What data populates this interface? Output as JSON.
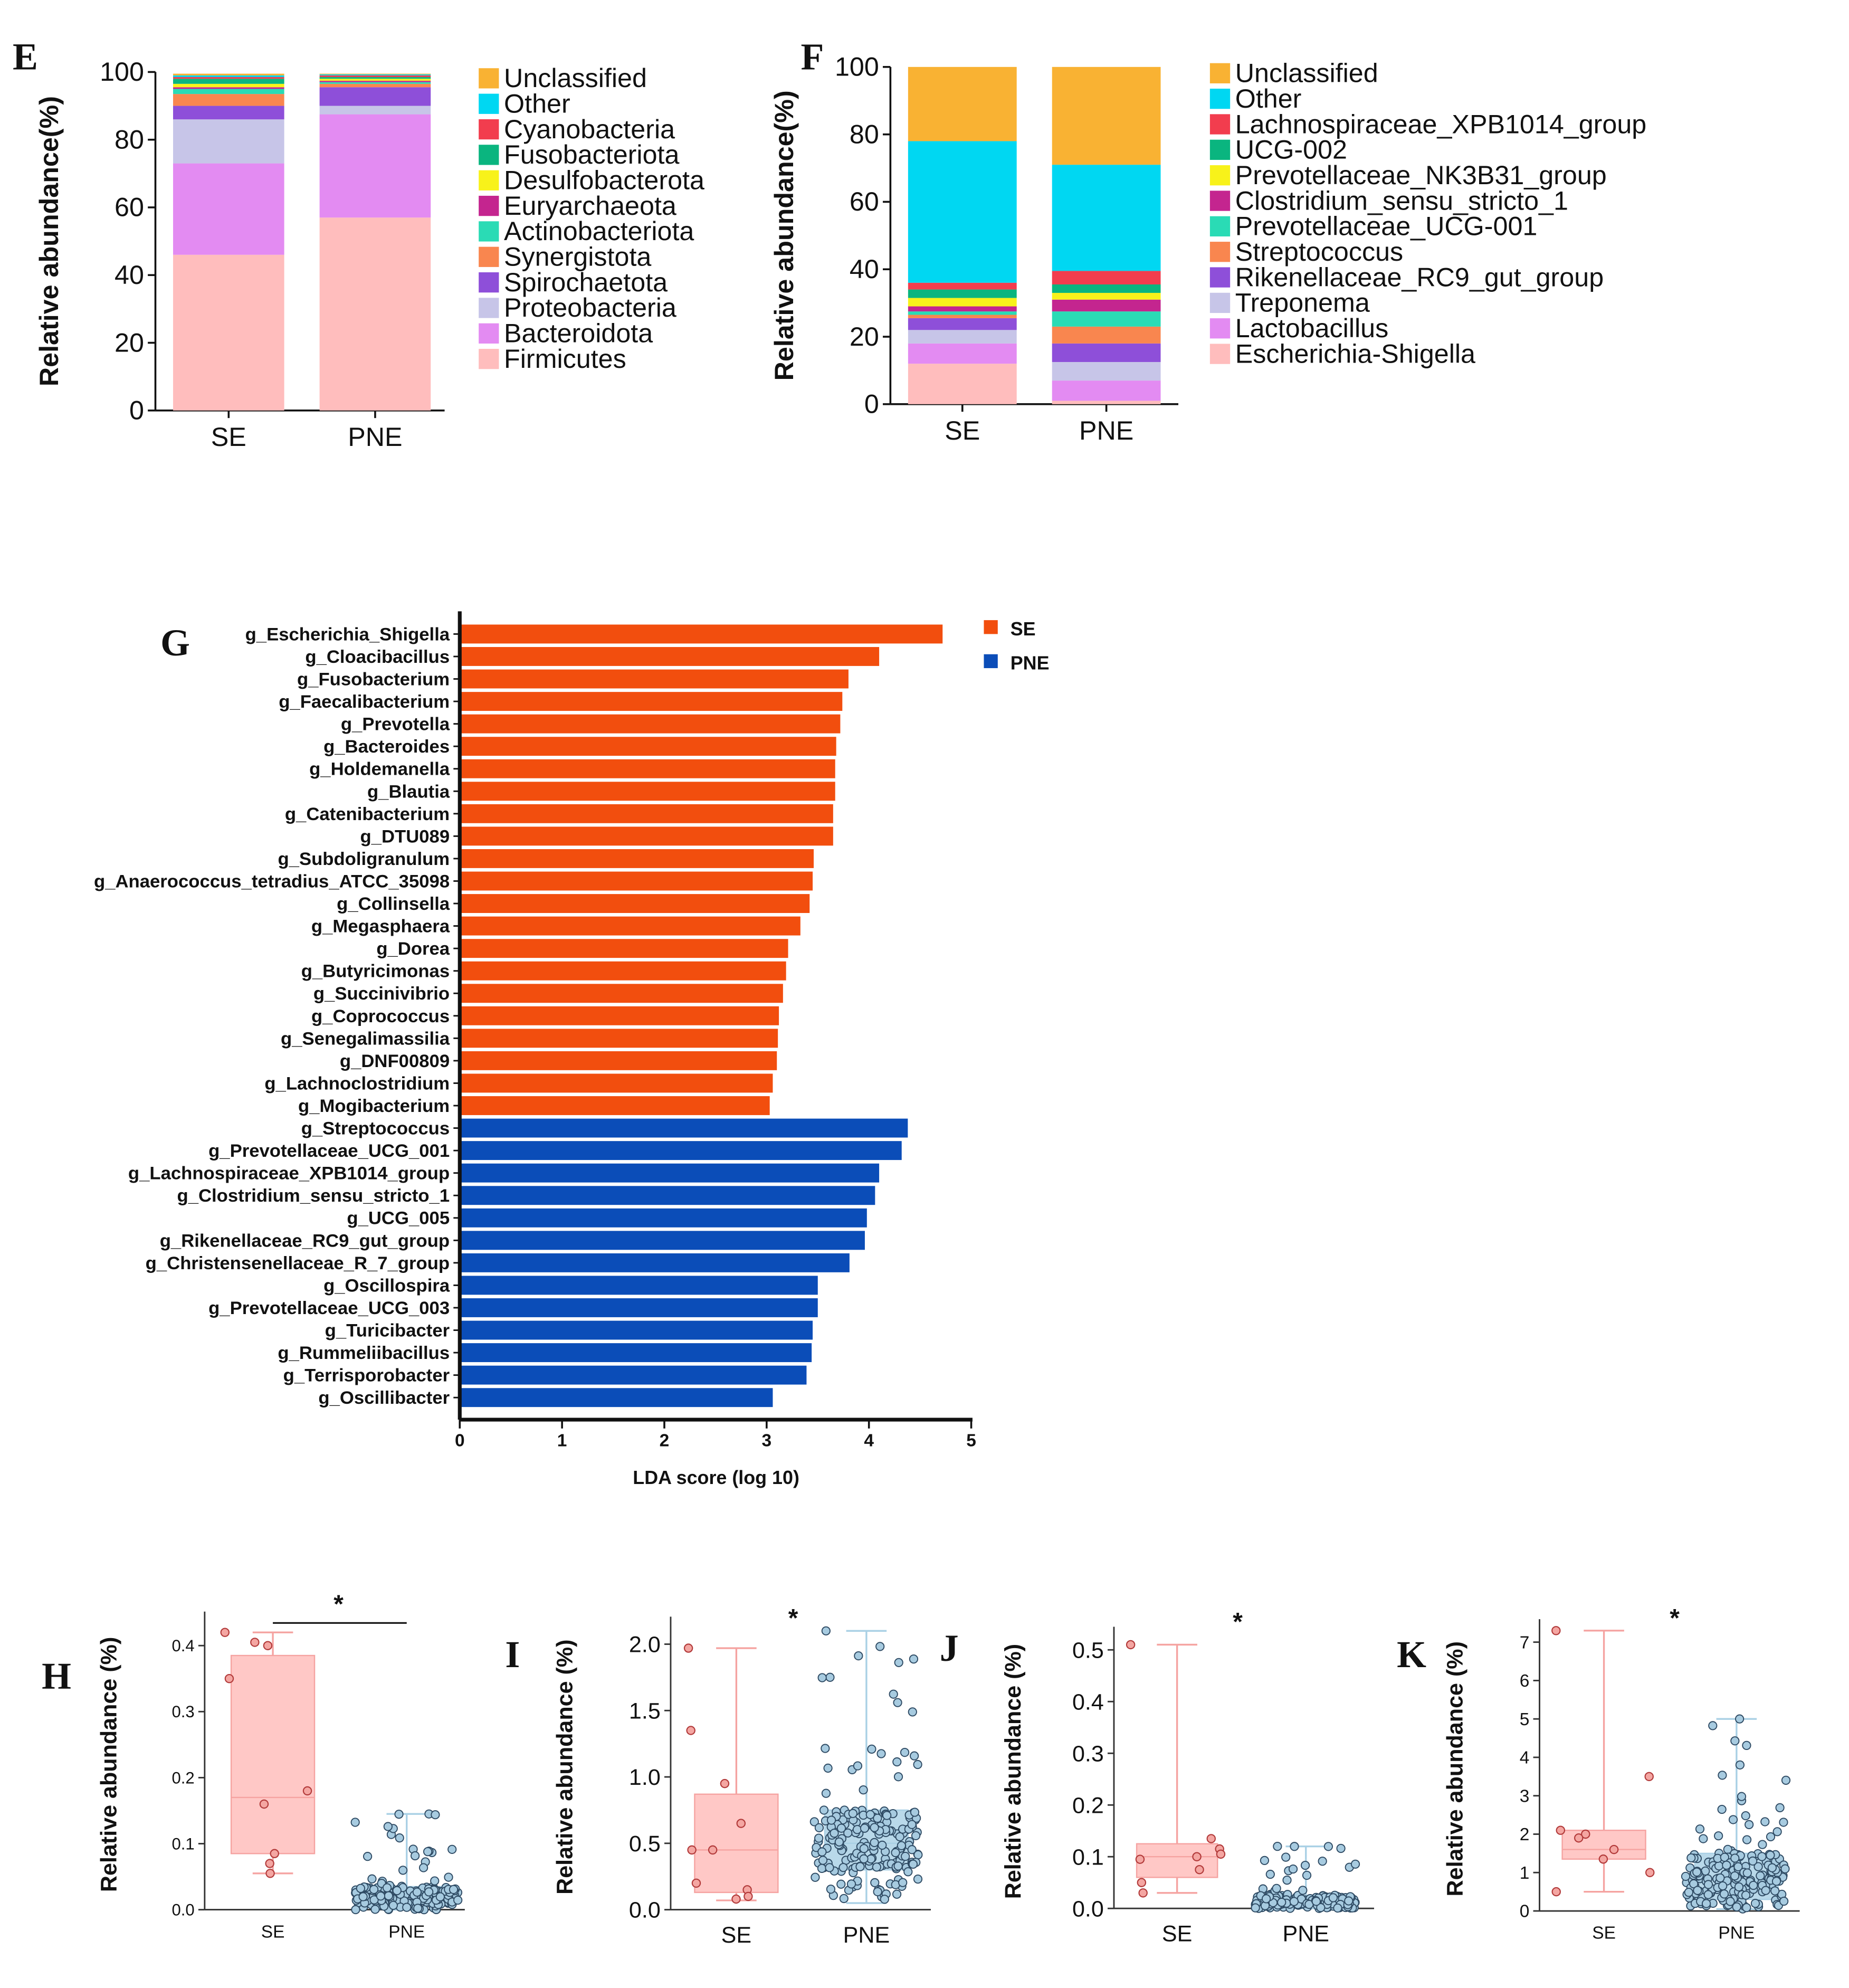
{
  "chart_data": [
    {
      "panel": "E",
      "type": "bar",
      "stacked": true,
      "ylabel": "Relative abundance(%)",
      "ylim": [
        0,
        100
      ],
      "yticks": [
        0,
        20,
        40,
        60,
        80,
        100
      ],
      "categories": [
        "SE",
        "PNE"
      ],
      "legend": [
        "Unclassified",
        "Other",
        "Cyanobacteria",
        "Fusobacteriota",
        "Desulfobacterota",
        "Euryarchaeota",
        "Actinobacteriota",
        "Synergistota",
        "Spirochaetota",
        "Proteobacteria",
        "Bacteroidota",
        "Firmicutes"
      ],
      "series": [
        {
          "name": "Firmicutes",
          "color": "#FFBDBD",
          "values": [
            46,
            57
          ]
        },
        {
          "name": "Bacteroidota",
          "color": "#E38BF2",
          "values": [
            27,
            30.5
          ]
        },
        {
          "name": "Proteobacteria",
          "color": "#C7C5E8",
          "values": [
            13,
            2.5
          ]
        },
        {
          "name": "Spirochaetota",
          "color": "#8E4FD9",
          "values": [
            4,
            5.5
          ]
        },
        {
          "name": "Synergistota",
          "color": "#F9864F",
          "values": [
            3.5,
            1
          ]
        },
        {
          "name": "Actinobacteriota",
          "color": "#2ADBB5",
          "values": [
            1.5,
            0.5
          ]
        },
        {
          "name": "Euryarchaeota",
          "color": "#C4258F",
          "values": [
            0.5,
            0.4
          ]
        },
        {
          "name": "Desulfobacterota",
          "color": "#F8F21A",
          "values": [
            1,
            0.6
          ]
        },
        {
          "name": "Fusobacteriota",
          "color": "#0AB57F",
          "values": [
            1.5,
            0.5
          ]
        },
        {
          "name": "Cyanobacteria",
          "color": "#F23D4E",
          "values": [
            0.5,
            0.5
          ]
        },
        {
          "name": "Other",
          "color": "#00D7F2",
          "values": [
            0.5,
            0.3
          ]
        },
        {
          "name": "Unclassified",
          "color": "#F9B233",
          "values": [
            0.5,
            0.2
          ]
        }
      ]
    },
    {
      "panel": "F",
      "type": "bar",
      "stacked": true,
      "ylabel": "Relative abundance(%)",
      "ylim": [
        0,
        100
      ],
      "yticks": [
        0,
        20,
        40,
        60,
        80,
        100
      ],
      "categories": [
        "SE",
        "PNE"
      ],
      "legend": [
        "Unclassified",
        "Other",
        "Lachnospiraceae_XPB1014_group",
        "UCG-002",
        "Prevotellaceae_NK3B31_group",
        "Clostridium_sensu_stricto_1",
        "Prevotellaceae_UCG-001",
        "Streptococcus",
        "Rikenellaceae_RC9_gut_group",
        "Treponema",
        "Lactobacillus",
        "Escherichia-Shigella"
      ],
      "series": [
        {
          "name": "Escherichia-Shigella",
          "color": "#FFBDBD",
          "values": [
            12,
            1
          ]
        },
        {
          "name": "Lactobacillus",
          "color": "#E38BF2",
          "values": [
            6,
            6
          ]
        },
        {
          "name": "Treponema",
          "color": "#C7C5E8",
          "values": [
            4,
            5.5
          ]
        },
        {
          "name": "Rikenellaceae_RC9_gut_group",
          "color": "#8E4FD9",
          "values": [
            3.5,
            5.5
          ]
        },
        {
          "name": "Streptococcus",
          "color": "#F9864F",
          "values": [
            1,
            5
          ]
        },
        {
          "name": "Prevotellaceae_UCG-001",
          "color": "#2ADBB5",
          "values": [
            1,
            4.5
          ]
        },
        {
          "name": "Clostridium_sensu_stricto_1",
          "color": "#C4258F",
          "values": [
            1.5,
            3.5
          ]
        },
        {
          "name": "Prevotellaceae_NK3B31_group",
          "color": "#F8F21A",
          "values": [
            2.5,
            2
          ]
        },
        {
          "name": "UCG-002",
          "color": "#0AB57F",
          "values": [
            2.5,
            2.5
          ]
        },
        {
          "name": "Lachnospiraceae_XPB1014_group",
          "color": "#F23D4E",
          "values": [
            2,
            4
          ]
        },
        {
          "name": "Other",
          "color": "#00D7F2",
          "values": [
            42,
            31.5
          ]
        },
        {
          "name": "Unclassified",
          "color": "#F9B233",
          "values": [
            22,
            29
          ]
        }
      ]
    },
    {
      "panel": "G",
      "type": "bar",
      "orientation": "horizontal",
      "xlabel": "LDA score (log 10)",
      "xlim": [
        0,
        5
      ],
      "xticks": [
        0,
        1,
        2,
        3,
        4,
        5
      ],
      "legend": [
        {
          "name": "SE",
          "color": "#F24E0E"
        },
        {
          "name": "PNE",
          "color": "#0B4DB8"
        }
      ],
      "bars": [
        {
          "label": "g_Escherichia_Shigella",
          "value": 4.72,
          "group": "SE"
        },
        {
          "label": "g_Cloacibacillus",
          "value": 4.1,
          "group": "SE"
        },
        {
          "label": "g_Fusobacterium",
          "value": 3.8,
          "group": "SE"
        },
        {
          "label": "g_Faecalibacterium",
          "value": 3.74,
          "group": "SE"
        },
        {
          "label": "g_Prevotella",
          "value": 3.72,
          "group": "SE"
        },
        {
          "label": "g_Bacteroides",
          "value": 3.68,
          "group": "SE"
        },
        {
          "label": "g_Holdemanella",
          "value": 3.67,
          "group": "SE"
        },
        {
          "label": "g_Blautia",
          "value": 3.67,
          "group": "SE"
        },
        {
          "label": "g_Catenibacterium",
          "value": 3.65,
          "group": "SE"
        },
        {
          "label": "g_DTU089",
          "value": 3.65,
          "group": "SE"
        },
        {
          "label": "g_Subdoligranulum",
          "value": 3.46,
          "group": "SE"
        },
        {
          "label": "g_Anaerococcus_tetradius_ATCC_35098",
          "value": 3.45,
          "group": "SE"
        },
        {
          "label": "g_Collinsella",
          "value": 3.42,
          "group": "SE"
        },
        {
          "label": "g_Megasphaera",
          "value": 3.33,
          "group": "SE"
        },
        {
          "label": "g_Dorea",
          "value": 3.21,
          "group": "SE"
        },
        {
          "label": "g_Butyricimonas",
          "value": 3.19,
          "group": "SE"
        },
        {
          "label": "g_Succinivibrio",
          "value": 3.16,
          "group": "SE"
        },
        {
          "label": "g_Coprococcus",
          "value": 3.12,
          "group": "SE"
        },
        {
          "label": "g_Senegalimassilia",
          "value": 3.11,
          "group": "SE"
        },
        {
          "label": "g_DNF00809",
          "value": 3.1,
          "group": "SE"
        },
        {
          "label": "g_Lachnoclostridium",
          "value": 3.06,
          "group": "SE"
        },
        {
          "label": "g_Mogibacterium",
          "value": 3.03,
          "group": "SE"
        },
        {
          "label": "g_Streptococcus",
          "value": 4.38,
          "group": "PNE"
        },
        {
          "label": "g_Prevotellaceae_UCG_001",
          "value": 4.32,
          "group": "PNE"
        },
        {
          "label": "g_Lachnospiraceae_XPB1014_group",
          "value": 4.1,
          "group": "PNE"
        },
        {
          "label": "g_Clostridium_sensu_stricto_1",
          "value": 4.06,
          "group": "PNE"
        },
        {
          "label": "g_UCG_005",
          "value": 3.98,
          "group": "PNE"
        },
        {
          "label": "g_Rikenellaceae_RC9_gut_group",
          "value": 3.96,
          "group": "PNE"
        },
        {
          "label": "g_Christensenellaceae_R_7_group",
          "value": 3.81,
          "group": "PNE"
        },
        {
          "label": "g_Oscillospira",
          "value": 3.5,
          "group": "PNE"
        },
        {
          "label": "g_Prevotellaceae_UCG_003",
          "value": 3.5,
          "group": "PNE"
        },
        {
          "label": "g_Turicibacter",
          "value": 3.45,
          "group": "PNE"
        },
        {
          "label": "g_Rummeliibacillus",
          "value": 3.44,
          "group": "PNE"
        },
        {
          "label": "g_Terrisporobacter",
          "value": 3.39,
          "group": "PNE"
        },
        {
          "label": "g_Oscillibacter",
          "value": 3.06,
          "group": "PNE"
        }
      ]
    },
    {
      "panel": "H",
      "type": "scatter",
      "subtype": "box-strip",
      "ylabel": "Relative abundance (%)",
      "ylim": [
        0,
        0.44
      ],
      "yticks": [
        "0.0",
        "0.1",
        "0.2",
        "0.3",
        "0.4"
      ],
      "categories": [
        "SE",
        "PNE"
      ],
      "significance": "*",
      "sig_bracket": true,
      "groups": [
        {
          "name": "SE",
          "box": [
            0.085,
            0.17,
            0.385
          ],
          "whisker": [
            0.055,
            0.42
          ],
          "points": [
            0.42,
            0.4,
            0.405,
            0.35,
            0.18,
            0.16,
            0.085,
            0.07,
            0.055
          ]
        },
        {
          "name": "PNE",
          "box": [
            0.01,
            0.02,
            0.035
          ],
          "whisker": [
            0.0,
            0.145
          ],
          "n": 200,
          "max": 0.145,
          "min": 0.0,
          "median": 0.02
        }
      ]
    },
    {
      "panel": "I",
      "type": "scatter",
      "subtype": "box-strip",
      "ylabel": "Relative abundance (%)",
      "ylim": [
        0,
        2.15
      ],
      "yticks": [
        "0.0",
        "0.5",
        "1.0",
        "1.5",
        "2.0"
      ],
      "categories": [
        "SE",
        "PNE"
      ],
      "significance": "*",
      "sig_bracket": false,
      "groups": [
        {
          "name": "SE",
          "box": [
            0.13,
            0.45,
            0.87
          ],
          "whisker": [
            0.07,
            1.97
          ],
          "points": [
            1.97,
            1.35,
            0.95,
            0.65,
            0.45,
            0.45,
            0.2,
            0.15,
            0.1,
            0.08
          ]
        },
        {
          "name": "PNE",
          "box": [
            0.3,
            0.5,
            0.75
          ],
          "whisker": [
            0.05,
            2.1
          ],
          "n": 200,
          "max": 2.1,
          "min": 0.05,
          "median": 0.5
        }
      ]
    },
    {
      "panel": "J",
      "type": "scatter",
      "subtype": "box-strip",
      "ylabel": "Relative abundance (%)",
      "ylim": [
        0,
        0.53
      ],
      "yticks": [
        "0.0",
        "0.1",
        "0.2",
        "0.3",
        "0.4",
        "0.5"
      ],
      "categories": [
        "SE",
        "PNE"
      ],
      "significance": "*",
      "sig_bracket": false,
      "groups": [
        {
          "name": "SE",
          "box": [
            0.06,
            0.1,
            0.125
          ],
          "whisker": [
            0.03,
            0.51
          ],
          "points": [
            0.51,
            0.135,
            0.115,
            0.105,
            0.1,
            0.095,
            0.075,
            0.05,
            0.03
          ]
        },
        {
          "name": "PNE",
          "box": [
            0.005,
            0.01,
            0.025
          ],
          "whisker": [
            0.0,
            0.12
          ],
          "n": 180,
          "max": 0.12,
          "min": 0.0,
          "median": 0.01
        }
      ]
    },
    {
      "panel": "K",
      "type": "scatter",
      "subtype": "box-strip",
      "ylabel": "Relative abundance (%)",
      "ylim": [
        0,
        7.4
      ],
      "yticks": [
        "0",
        "1",
        "2",
        "3",
        "4",
        "5",
        "6",
        "7"
      ],
      "categories": [
        "SE",
        "PNE"
      ],
      "significance": "*",
      "sig_bracket": false,
      "groups": [
        {
          "name": "SE",
          "box": [
            1.35,
            1.6,
            2.1
          ],
          "whisker": [
            0.5,
            7.3
          ],
          "points": [
            7.3,
            3.5,
            2.1,
            2.0,
            1.9,
            1.6,
            1.35,
            1.0,
            0.5
          ]
        },
        {
          "name": "PNE",
          "box": [
            0.3,
            0.8,
            1.5
          ],
          "whisker": [
            0.05,
            5.0
          ],
          "n": 200,
          "max": 5.0,
          "min": 0.05,
          "median": 0.8
        }
      ]
    }
  ],
  "panel_labels": [
    "E",
    "F",
    "G",
    "H",
    "I",
    "J",
    "K"
  ]
}
